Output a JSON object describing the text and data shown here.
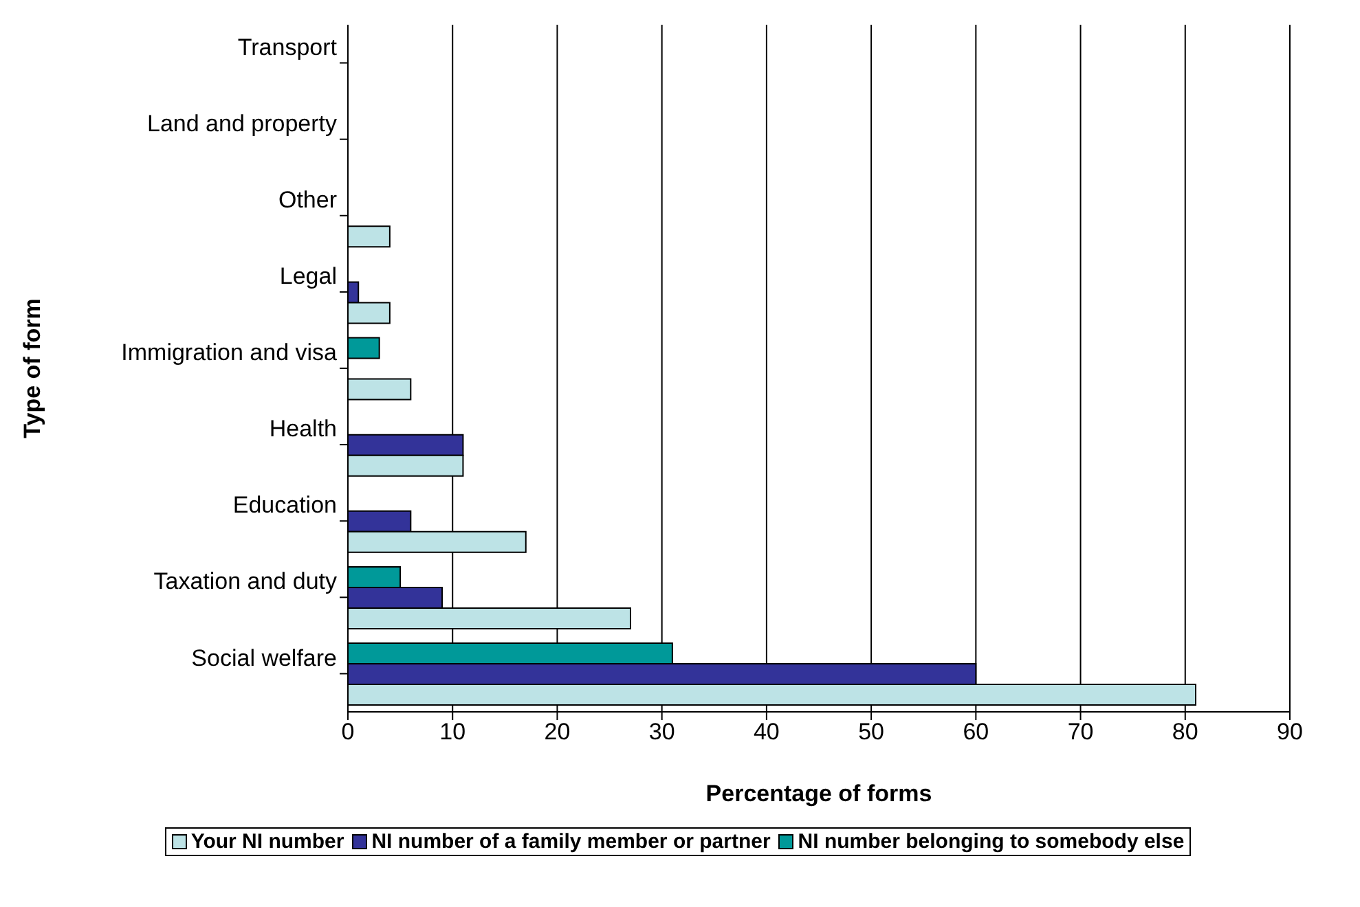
{
  "chart_data": {
    "type": "bar",
    "orientation": "horizontal",
    "xlabel": "Percentage of forms",
    "ylabel": "Type of form",
    "categories": [
      "Transport",
      "Land and property",
      "Other",
      "Legal",
      "Immigration and visa",
      "Health",
      "Education",
      "Taxation and duty",
      "Social welfare"
    ],
    "series": [
      {
        "name": "Your NI number",
        "color": "#bde3e6",
        "values": [
          null,
          null,
          4,
          4,
          6,
          11,
          17,
          27,
          81
        ]
      },
      {
        "name": "NI number of a family member or partner",
        "color": "#333399",
        "values": [
          null,
          null,
          null,
          1,
          null,
          11,
          6,
          9,
          60
        ]
      },
      {
        "name": "NI number belonging to somebody else",
        "color": "#009999",
        "values": [
          null,
          null,
          null,
          null,
          3,
          null,
          null,
          5,
          31
        ]
      }
    ],
    "xlim": [
      0,
      90
    ],
    "xticks": [
      0,
      10,
      20,
      30,
      40,
      50,
      60,
      70,
      80,
      90
    ],
    "grid": "x",
    "legend": "bottom"
  }
}
